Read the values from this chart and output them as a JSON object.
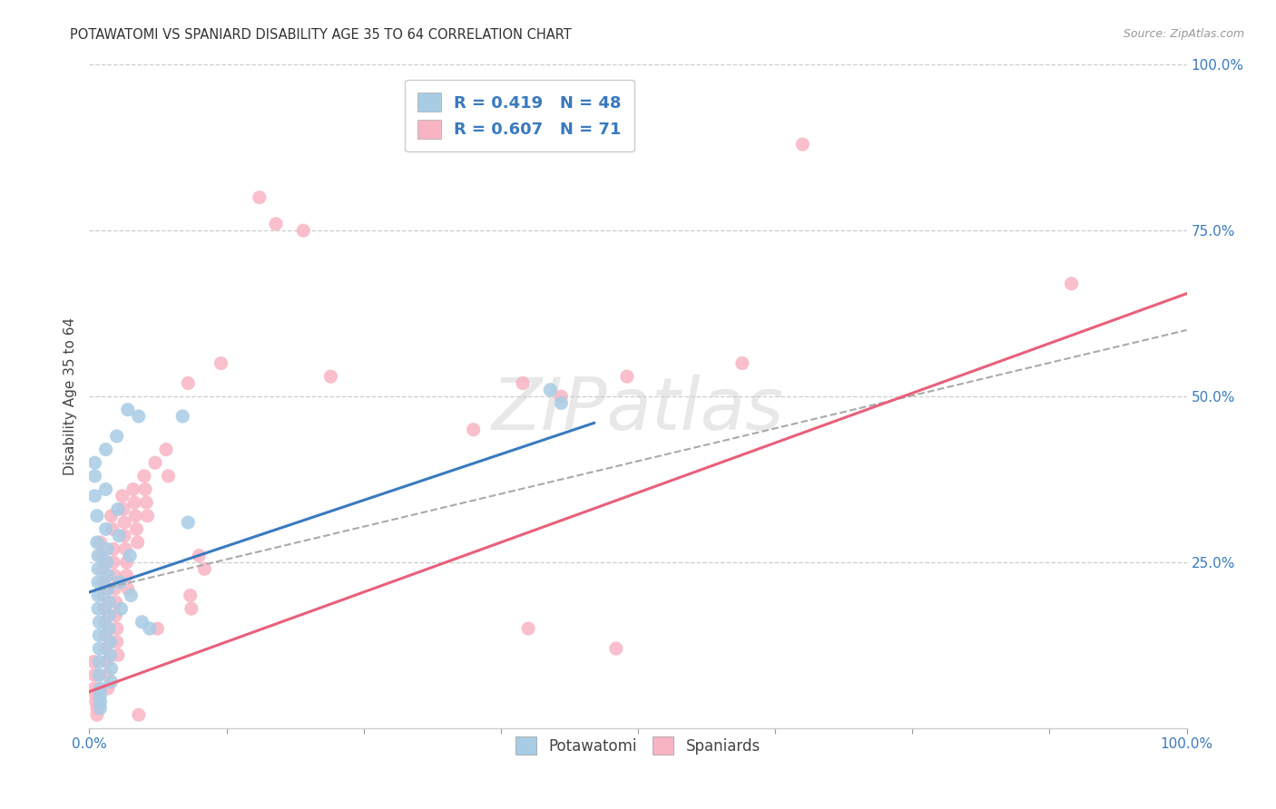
{
  "title": "POTAWATOMI VS SPANIARD DISABILITY AGE 35 TO 64 CORRELATION CHART",
  "source": "Source: ZipAtlas.com",
  "ylabel": "Disability Age 35 to 64",
  "watermark": "ZIPatlas",
  "legend_blue_label": "R = 0.419   N = 48",
  "legend_pink_label": "R = 0.607   N = 71",
  "legend_label_blue": "Potawatomi",
  "legend_label_pink": "Spaniards",
  "blue_color": "#a8cce4",
  "pink_color": "#f9b4c4",
  "blue_line_color": "#3a7abf",
  "pink_line_color": "#e8607a",
  "dash_color": "#aaaaaa",
  "text_color": "#3a7abf",
  "blue_scatter": [
    [
      0.005,
      0.38
    ],
    [
      0.005,
      0.4
    ],
    [
      0.005,
      0.35
    ],
    [
      0.007,
      0.32
    ],
    [
      0.007,
      0.28
    ],
    [
      0.008,
      0.26
    ],
    [
      0.008,
      0.24
    ],
    [
      0.008,
      0.22
    ],
    [
      0.008,
      0.2
    ],
    [
      0.008,
      0.18
    ],
    [
      0.009,
      0.16
    ],
    [
      0.009,
      0.14
    ],
    [
      0.009,
      0.12
    ],
    [
      0.009,
      0.1
    ],
    [
      0.009,
      0.08
    ],
    [
      0.01,
      0.06
    ],
    [
      0.01,
      0.05
    ],
    [
      0.01,
      0.04
    ],
    [
      0.01,
      0.03
    ],
    [
      0.015,
      0.42
    ],
    [
      0.015,
      0.36
    ],
    [
      0.015,
      0.3
    ],
    [
      0.016,
      0.27
    ],
    [
      0.016,
      0.25
    ],
    [
      0.017,
      0.23
    ],
    [
      0.017,
      0.21
    ],
    [
      0.018,
      0.19
    ],
    [
      0.018,
      0.17
    ],
    [
      0.018,
      0.15
    ],
    [
      0.019,
      0.13
    ],
    [
      0.019,
      0.11
    ],
    [
      0.02,
      0.09
    ],
    [
      0.02,
      0.07
    ],
    [
      0.025,
      0.44
    ],
    [
      0.026,
      0.33
    ],
    [
      0.027,
      0.29
    ],
    [
      0.028,
      0.22
    ],
    [
      0.029,
      0.18
    ],
    [
      0.035,
      0.48
    ],
    [
      0.037,
      0.26
    ],
    [
      0.038,
      0.2
    ],
    [
      0.045,
      0.47
    ],
    [
      0.048,
      0.16
    ],
    [
      0.055,
      0.15
    ],
    [
      0.085,
      0.47
    ],
    [
      0.09,
      0.31
    ],
    [
      0.42,
      0.51
    ],
    [
      0.43,
      0.49
    ]
  ],
  "pink_scatter": [
    [
      0.004,
      0.1
    ],
    [
      0.005,
      0.08
    ],
    [
      0.005,
      0.06
    ],
    [
      0.006,
      0.05
    ],
    [
      0.006,
      0.04
    ],
    [
      0.007,
      0.03
    ],
    [
      0.007,
      0.02
    ],
    [
      0.01,
      0.28
    ],
    [
      0.011,
      0.26
    ],
    [
      0.012,
      0.24
    ],
    [
      0.013,
      0.22
    ],
    [
      0.013,
      0.2
    ],
    [
      0.014,
      0.18
    ],
    [
      0.014,
      0.16
    ],
    [
      0.015,
      0.14
    ],
    [
      0.015,
      0.12
    ],
    [
      0.016,
      0.1
    ],
    [
      0.016,
      0.08
    ],
    [
      0.017,
      0.06
    ],
    [
      0.02,
      0.32
    ],
    [
      0.021,
      0.3
    ],
    [
      0.022,
      0.27
    ],
    [
      0.022,
      0.25
    ],
    [
      0.023,
      0.23
    ],
    [
      0.023,
      0.21
    ],
    [
      0.024,
      0.19
    ],
    [
      0.024,
      0.17
    ],
    [
      0.025,
      0.15
    ],
    [
      0.025,
      0.13
    ],
    [
      0.026,
      0.11
    ],
    [
      0.03,
      0.35
    ],
    [
      0.031,
      0.33
    ],
    [
      0.032,
      0.31
    ],
    [
      0.032,
      0.29
    ],
    [
      0.033,
      0.27
    ],
    [
      0.034,
      0.25
    ],
    [
      0.034,
      0.23
    ],
    [
      0.035,
      0.21
    ],
    [
      0.04,
      0.36
    ],
    [
      0.041,
      0.34
    ],
    [
      0.042,
      0.32
    ],
    [
      0.043,
      0.3
    ],
    [
      0.044,
      0.28
    ],
    [
      0.045,
      0.02
    ],
    [
      0.05,
      0.38
    ],
    [
      0.051,
      0.36
    ],
    [
      0.052,
      0.34
    ],
    [
      0.053,
      0.32
    ],
    [
      0.06,
      0.4
    ],
    [
      0.062,
      0.15
    ],
    [
      0.07,
      0.42
    ],
    [
      0.072,
      0.38
    ],
    [
      0.09,
      0.52
    ],
    [
      0.092,
      0.2
    ],
    [
      0.093,
      0.18
    ],
    [
      0.1,
      0.26
    ],
    [
      0.105,
      0.24
    ],
    [
      0.12,
      0.55
    ],
    [
      0.155,
      0.8
    ],
    [
      0.17,
      0.76
    ],
    [
      0.195,
      0.75
    ],
    [
      0.22,
      0.53
    ],
    [
      0.35,
      0.45
    ],
    [
      0.395,
      0.52
    ],
    [
      0.4,
      0.15
    ],
    [
      0.43,
      0.5
    ],
    [
      0.49,
      0.53
    ],
    [
      0.48,
      0.12
    ],
    [
      0.595,
      0.55
    ],
    [
      0.65,
      0.88
    ],
    [
      0.895,
      0.67
    ]
  ],
  "xlim": [
    0.0,
    1.0
  ],
  "ylim": [
    0.0,
    1.0
  ],
  "blue_line": {
    "x0": 0.0,
    "y0": 0.205,
    "x1": 0.46,
    "y1": 0.46
  },
  "pink_line": {
    "x0": 0.0,
    "y0": 0.055,
    "x1": 1.0,
    "y1": 0.655
  },
  "dash_line": {
    "x0": 0.0,
    "y0": 0.205,
    "x1": 1.0,
    "y1": 0.6
  },
  "yticks": [
    0.0,
    0.25,
    0.5,
    0.75,
    1.0
  ],
  "ytick_labels": [
    "",
    "25.0%",
    "50.0%",
    "75.0%",
    "100.0%"
  ]
}
